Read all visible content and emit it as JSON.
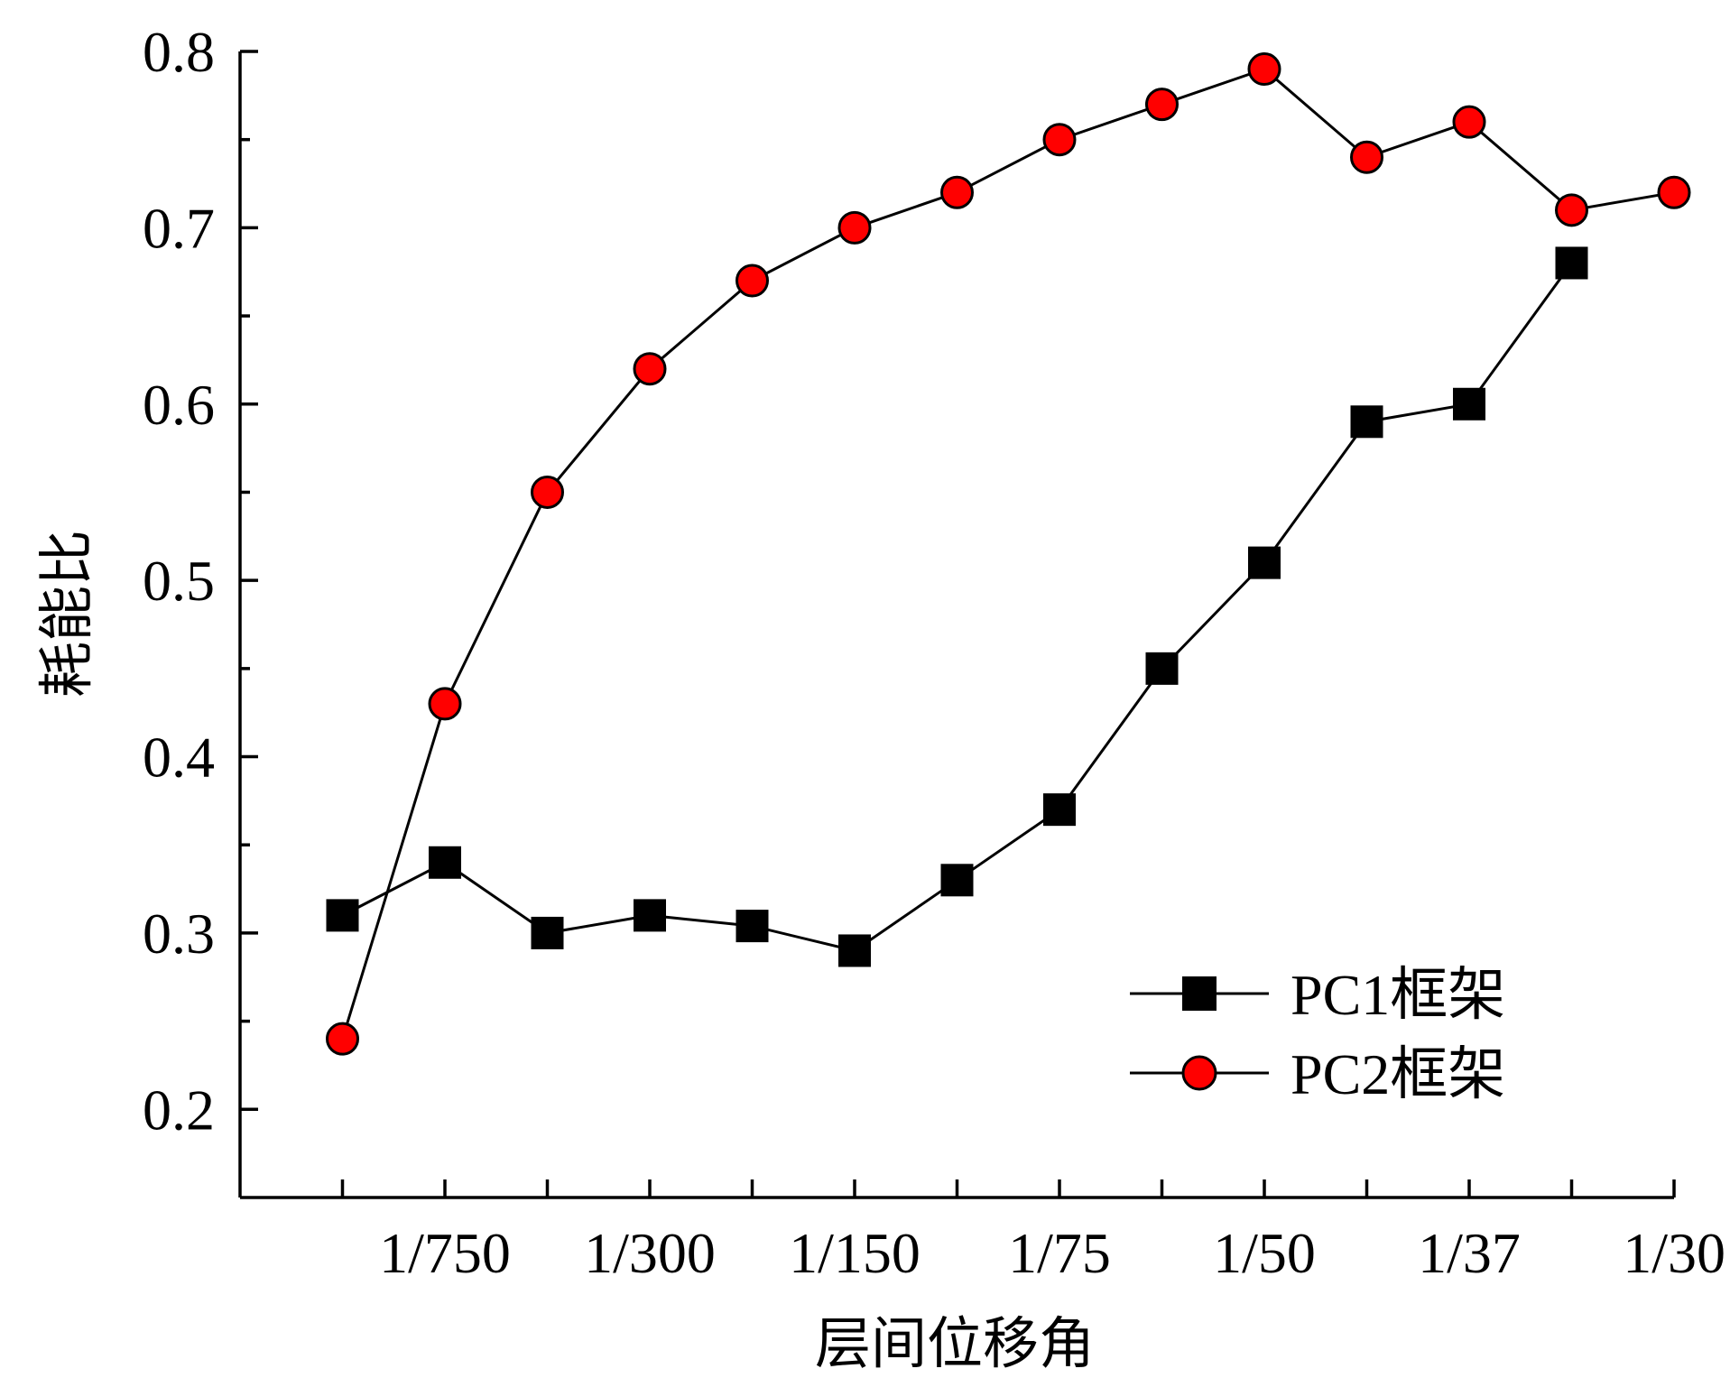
{
  "chart_data": {
    "type": "line",
    "title": "",
    "xlabel": "层间位移角",
    "ylabel": "耗能比",
    "x_positions": [
      1,
      2,
      3,
      4,
      5,
      6,
      7,
      8,
      9,
      10,
      11,
      12,
      13,
      14
    ],
    "x_ticks": [
      {
        "pos": 1,
        "label": ""
      },
      {
        "pos": 2,
        "label": "1/750"
      },
      {
        "pos": 3,
        "label": ""
      },
      {
        "pos": 4,
        "label": "1/300"
      },
      {
        "pos": 5,
        "label": ""
      },
      {
        "pos": 6,
        "label": "1/150"
      },
      {
        "pos": 7,
        "label": ""
      },
      {
        "pos": 8,
        "label": "1/75"
      },
      {
        "pos": 9,
        "label": ""
      },
      {
        "pos": 10,
        "label": "1/50"
      },
      {
        "pos": 11,
        "label": ""
      },
      {
        "pos": 12,
        "label": "1/37"
      },
      {
        "pos": 13,
        "label": ""
      },
      {
        "pos": 14,
        "label": "1/30"
      }
    ],
    "xlim": [
      0,
      14
    ],
    "ylim": [
      0.15,
      0.8
    ],
    "y_ticks": [
      {
        "value": 0.8,
        "label": "0.8"
      },
      {
        "value": 0.7,
        "label": "0.7"
      },
      {
        "value": 0.6,
        "label": "0.6"
      },
      {
        "value": 0.5,
        "label": "0.5"
      },
      {
        "value": 0.4,
        "label": "0.4"
      },
      {
        "value": 0.3,
        "label": "0.3"
      },
      {
        "value": 0.2,
        "label": "0.2"
      }
    ],
    "y_minor_ticks": [
      0.75,
      0.65,
      0.55,
      0.45,
      0.35,
      0.25
    ],
    "grid": false,
    "legend_position": "bottom-right",
    "series": [
      {
        "name": "PC1框架",
        "marker": "square",
        "marker_color": "#000000",
        "line_color": "#000000",
        "values": [
          0.31,
          0.34,
          0.3,
          0.31,
          0.304,
          0.29,
          0.33,
          0.37,
          0.45,
          0.51,
          0.59,
          0.6,
          0.68,
          null
        ]
      },
      {
        "name": "PC2框架",
        "marker": "circle",
        "marker_color": "#ff0000",
        "line_color": "#000000",
        "values": [
          0.24,
          0.43,
          0.55,
          0.62,
          0.67,
          0.7,
          0.72,
          0.75,
          0.77,
          0.79,
          0.74,
          0.76,
          0.71,
          0.72
        ]
      }
    ]
  }
}
